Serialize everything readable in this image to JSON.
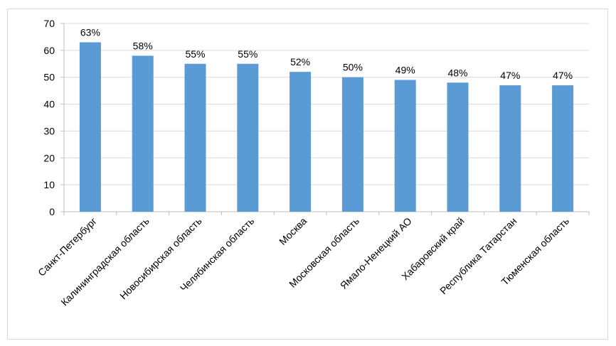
{
  "chart_data": {
    "type": "bar",
    "categories": [
      "Санкт-Петербург",
      "Калининградская область",
      "Новосибирская область",
      "Челябинская область",
      "Москва",
      "Московская область",
      "Ямало-Ненецкий АО",
      "Хабаровский край",
      "Республика Татарстан",
      "Тюменская область"
    ],
    "values": [
      63,
      58,
      55,
      55,
      52,
      50,
      49,
      48,
      47,
      47
    ],
    "data_labels": [
      "63%",
      "58%",
      "55%",
      "55%",
      "52%",
      "50%",
      "49%",
      "48%",
      "47%",
      "47%"
    ],
    "ylim": [
      0,
      70
    ],
    "yticks": [
      0,
      10,
      20,
      30,
      40,
      50,
      60,
      70
    ],
    "grid": true,
    "bar_color": "#5B9BD5",
    "grid_color": "#d9d9d9",
    "axis_color": "#bfbfbf"
  }
}
